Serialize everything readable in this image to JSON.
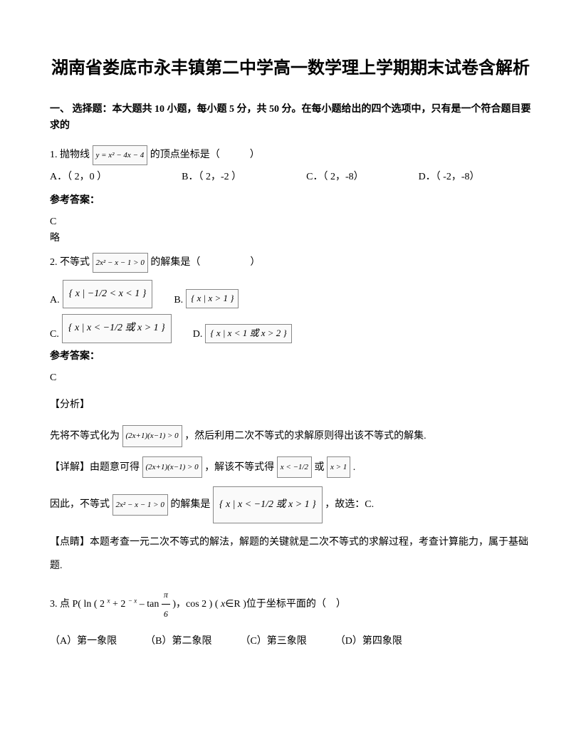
{
  "title": "湖南省娄底市永丰镇第二中学高一数学理上学期期末试卷含解析",
  "section1": "一、 选择题：本大题共 10 小题，每小题 5 分，共 50 分。在每小题给出的四个选项中，只有是一个符合题目要求的",
  "q1": {
    "stem_pre": "1. 抛物线",
    "formula": "y = x² − 4x − 4",
    "stem_post": "的顶点坐标是（　　　）",
    "opts_line1": "A．（ 2，0 ）　　　　　　　　B．（ 2，-2 ）　　　　　　　C．（ 2，-8）　　　　　　D．（ -2，-8）",
    "answer_label": "参考答案：",
    "answer": "C",
    "omit": "略"
  },
  "q2": {
    "stem_pre": "2. 不等式",
    "formula": "2x² − x − 1 > 0",
    "stem_post": "的解集是（　　　　　）",
    "optA_label": "A.",
    "optA": "{ x | −1/2 < x < 1 }",
    "optB_label": "B.",
    "optB": "{ x | x > 1 }",
    "optC_label": "C.",
    "optC": "{ x | x < −1/2 或 x > 1 }",
    "optD_label": "D.",
    "optD": "{ x | x < 1 或 x > 2 }",
    "answer_label": "参考答案：",
    "answer": "C",
    "analysis_tag": "【分析】",
    "analysis_pre": "先将不等式化为",
    "analysis_f1": "(2x+1)(x−1) > 0",
    "analysis_post": "，然后利用二次不等式的求解原则得出该不等式的解集.",
    "detail_tag": "【详解】由题意可得",
    "detail_f1": "(2x+1)(x−1) > 0",
    "detail_mid": "，解该不等式得",
    "detail_f2": "x < −1/2",
    "detail_or": "或",
    "detail_f3": "x > 1",
    "detail_end": ".",
    "so_pre": "因此，不等式",
    "so_f1": "2x² − x − 1 > 0",
    "so_mid": "的解集是",
    "so_set": "{ x | x < −1/2 或 x > 1 }",
    "so_post": "，故选：C.",
    "comment": "【点睛】本题考查一元二次不等式的解法，解题的关键就是二次不等式的求解过程，考查计算能力，属于基础题."
  },
  "q3": {
    "stem_a": "3. 点 P( ln ( 2 ",
    "exp1": "x",
    "stem_b": " + 2 ",
    "exp2": "− x",
    "stem_c": " – tan ",
    "frac_num": "π",
    "frac_den": "6",
    "stem_d": " )，cos 2 ) ( ",
    "xr": "x",
    "stem_e": "∈R )位于坐标平面的（　）",
    "optA": "（A）第一象限",
    "optB": "（B）第二象限",
    "optC": "（C）第三象限",
    "optD": "（D）第四象限"
  }
}
